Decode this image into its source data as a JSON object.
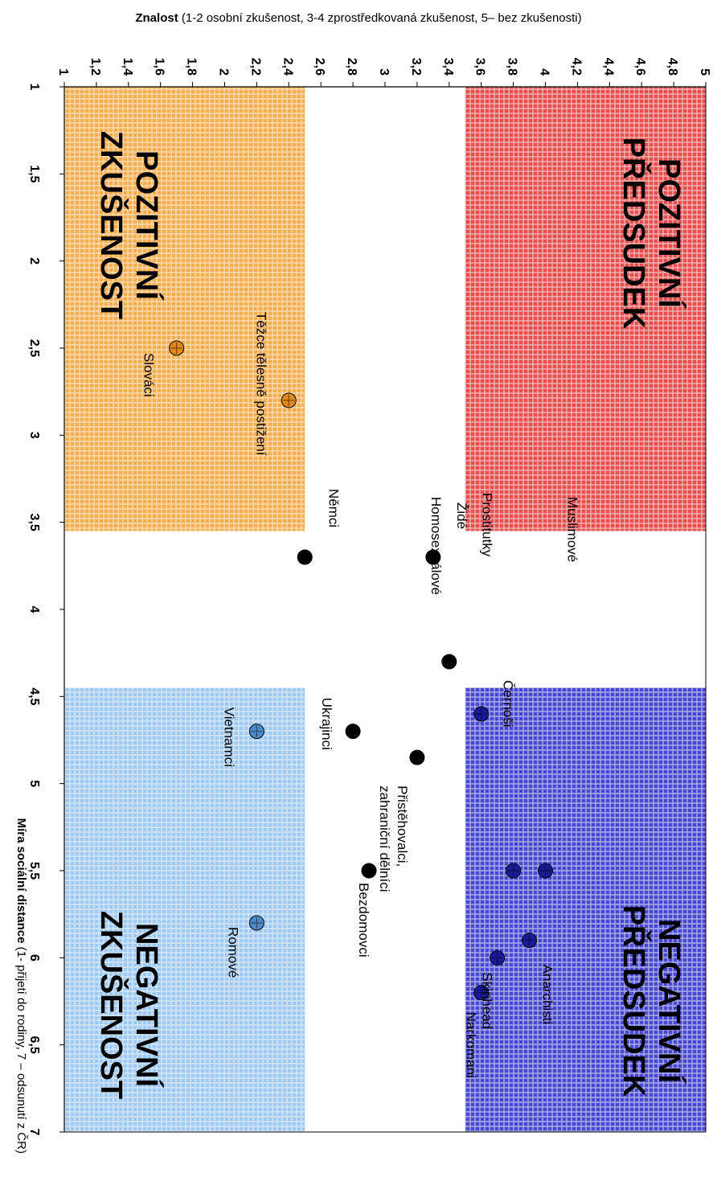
{
  "chart_data": {
    "type": "scatter",
    "rotated": "90deg-clockwise",
    "x_axis": {
      "title_bold": "Znalost",
      "title_rest": " (1-2 osobní zkušenost, 3-4 zprostředkovaná zkušenost, 5– bez zkušenosti)",
      "range": [
        1,
        5
      ],
      "ticks": [
        "1",
        "1,2",
        "1,4",
        "1,6",
        "1,8",
        "2",
        "2,2",
        "2,4",
        "2,6",
        "2,8",
        "3",
        "3,2",
        "3,4",
        "3,6",
        "3,8",
        "4",
        "4,2",
        "4,4",
        "4,6",
        "4,8",
        "5"
      ],
      "tick_values": [
        1,
        1.2,
        1.4,
        1.6,
        1.8,
        2,
        2.2,
        2.4,
        2.6,
        2.8,
        3,
        3.2,
        3.4,
        3.6,
        3.8,
        4,
        4.2,
        4.4,
        4.6,
        4.8,
        5
      ]
    },
    "y_axis": {
      "title_bold": "Míra sociální distance",
      "title_rest": " (1- přijetí do rodiny, 7 – odsunutí z ČR)",
      "range": [
        1,
        7
      ],
      "ticks": [
        "1",
        "1,5",
        "2",
        "2,5",
        "3",
        "3,5",
        "4",
        "4,5",
        "5",
        "5,5",
        "6",
        "6,5",
        "7"
      ],
      "tick_values": [
        1,
        1.5,
        2,
        2.5,
        3,
        3.5,
        4,
        4.5,
        5,
        5.5,
        6,
        6.5,
        7
      ]
    },
    "regions": [
      {
        "name": "POZITIVNÍ PŘEDSUDEK",
        "lines": [
          "POZITIVNÍ",
          "PŘEDSUDEK"
        ],
        "x": [
          3.5,
          5
        ],
        "y": [
          1,
          3.55
        ],
        "color": "#e03030"
      },
      {
        "name": "POZITIVNÍ ZKUŠENOST",
        "lines": [
          "POZITIVNÍ",
          "ZKUŠENOST"
        ],
        "x": [
          1,
          2.5
        ],
        "y": [
          1,
          3.55
        ],
        "color": "#f0a030"
      },
      {
        "name": "NEGATIVNÍ PŘEDSUDEK",
        "lines": [
          "NEGATIVNÍ",
          "PŘEDSUDEK"
        ],
        "x": [
          3.5,
          5
        ],
        "y": [
          4.45,
          7
        ],
        "color": "#2828c8"
      },
      {
        "name": "NEGATIVNÍ ZKUŠENOST",
        "lines": [
          "NEGATIVNÍ",
          "ZKUŠENOST"
        ],
        "x": [
          1,
          2.5
        ],
        "y": [
          4.45,
          7
        ],
        "color": "#8ec0ec"
      }
    ],
    "points": [
      {
        "label": "Slováci",
        "x": 1.7,
        "y": 2.5,
        "color": "#e08818"
      },
      {
        "label": "Těžce tělesně postižení",
        "x": 2.4,
        "y": 2.8,
        "color": "#e08818"
      },
      {
        "label": "Němci",
        "x": 2.5,
        "y": 3.7,
        "color": "#000000"
      },
      {
        "label": "Židé",
        "x": 3.3,
        "y": 3.7,
        "color": "#000000"
      },
      {
        "label": "Homosexuálové",
        "x": 3.4,
        "y": 4.3,
        "color": "#000000"
      },
      {
        "label": "Ukrajinci",
        "x": 2.8,
        "y": 4.7,
        "color": "#000000"
      },
      {
        "label": "Vietnamci",
        "x": 2.2,
        "y": 4.7,
        "color": "#4d88c8"
      },
      {
        "label": "Přistěhovalci, zahraniční dělníci",
        "x": 3.2,
        "y": 4.85,
        "color": "#000000"
      },
      {
        "label": "Bezdomovci",
        "x": 2.9,
        "y": 5.5,
        "color": "#000000"
      },
      {
        "label": "Romové",
        "x": 2.2,
        "y": 5.8,
        "color": "#4d88c8"
      },
      {
        "label": "Černoši",
        "x": 3.6,
        "y": 4.6,
        "color": "#1a1a96"
      },
      {
        "label": "Prostitutky",
        "x": 3.8,
        "y": 5.5,
        "color": "#1a1a96"
      },
      {
        "label": "Muslimové",
        "x": 4.0,
        "y": 5.5,
        "color": "#1a1a96"
      },
      {
        "label": "Anarchisti",
        "x": 3.9,
        "y": 5.9,
        "color": "#1a1a96"
      },
      {
        "label": "Skinhead",
        "x": 3.7,
        "y": 6.0,
        "color": "#1a1a96"
      },
      {
        "label": "Narkomani",
        "x": 3.6,
        "y": 6.2,
        "color": "#1a1a96"
      }
    ]
  }
}
